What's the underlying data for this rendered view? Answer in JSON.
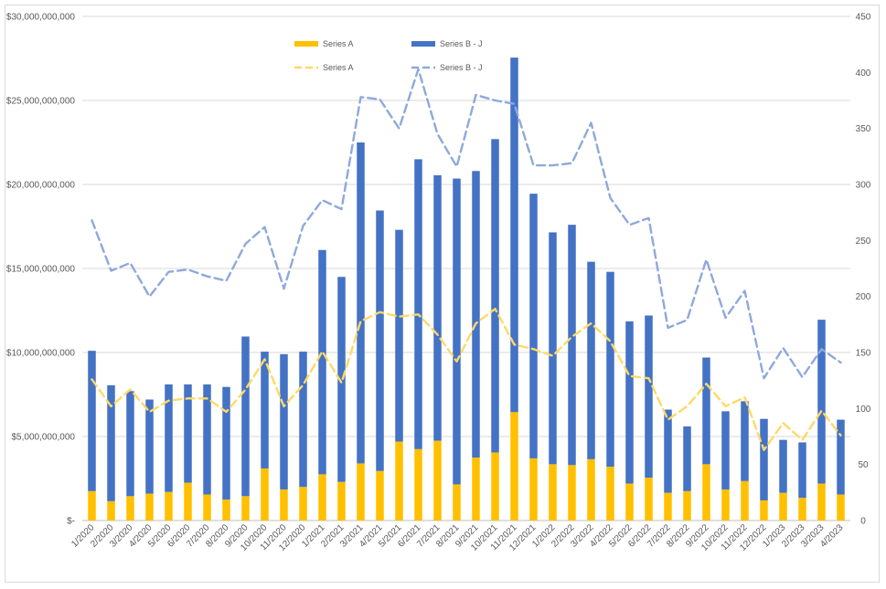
{
  "chart_data": {
    "type": "bar",
    "categories": [
      "1/2020",
      "2/2020",
      "3/2020",
      "4/2020",
      "5/2020",
      "6/2020",
      "7/2020",
      "8/2020",
      "9/2020",
      "10/2020",
      "11/2020",
      "12/2020",
      "1/2021",
      "2/2021",
      "3/2021",
      "4/2021",
      "5/2021",
      "6/2021",
      "7/2021",
      "8/2021",
      "9/2021",
      "10/2021",
      "11/2021",
      "12/2021",
      "1/2022",
      "2/2022",
      "3/2022",
      "4/2022",
      "5/2022",
      "6/2022",
      "7/2022",
      "8/2022",
      "9/2022",
      "10/2022",
      "11/2022",
      "12/2022",
      "1/2023",
      "2/2023",
      "3/2023",
      "4/2023"
    ],
    "stacked": true,
    "series": [
      {
        "name": "Series A",
        "kind": "bar",
        "axis": "left",
        "color": "#FFC000",
        "values": [
          1750000000,
          1150000000,
          1450000000,
          1600000000,
          1700000000,
          2250000000,
          1550000000,
          1250000000,
          1450000000,
          3100000000,
          1850000000,
          2000000000,
          2750000000,
          2300000000,
          3400000000,
          2950000000,
          4700000000,
          4250000000,
          4750000000,
          2150000000,
          3750000000,
          4050000000,
          6450000000,
          3700000000,
          3350000000,
          3300000000,
          3650000000,
          3200000000,
          2200000000,
          2550000000,
          1650000000,
          1750000000,
          3350000000,
          1850000000,
          2350000000,
          1200000000,
          1650000000,
          1350000000,
          2200000000,
          1550000000
        ]
      },
      {
        "name": "Series B - J",
        "kind": "bar",
        "axis": "left",
        "color": "#4472C4",
        "values": [
          8350000000,
          6900000000,
          6250000000,
          5600000000,
          6400000000,
          5850000000,
          6550000000,
          6700000000,
          9500000000,
          6950000000,
          8050000000,
          8050000000,
          13350000000,
          12200000000,
          19100000000,
          15500000000,
          12600000000,
          17250000000,
          15800000000,
          18200000000,
          17050000000,
          18650000000,
          21100000000,
          15750000000,
          13800000000,
          14300000000,
          11750000000,
          11600000000,
          9650000000,
          9650000000,
          4950000000,
          3850000000,
          6350000000,
          4650000000,
          4750000000,
          4850000000,
          3150000000,
          3300000000,
          9750000000,
          4450000000
        ]
      },
      {
        "name": "Series A",
        "kind": "line",
        "axis": "right",
        "color": "#FFD966",
        "values": [
          126,
          102,
          117,
          97,
          107,
          109,
          109,
          97,
          117,
          144,
          102,
          121,
          151,
          123,
          178,
          186,
          182,
          184,
          166,
          142,
          176,
          189,
          157,
          153,
          147,
          164,
          176,
          160,
          129,
          127,
          90,
          102,
          122,
          102,
          110,
          63,
          87,
          72,
          98,
          76
        ]
      },
      {
        "name": "Series B - J",
        "kind": "line",
        "axis": "right",
        "color": "#8EA9DB",
        "values": [
          268,
          223,
          230,
          200,
          222,
          224,
          218,
          214,
          247,
          262,
          207,
          263,
          286,
          278,
          378,
          376,
          350,
          403,
          345,
          316,
          380,
          375,
          372,
          317,
          317,
          319,
          355,
          288,
          264,
          270,
          172,
          179,
          233,
          181,
          205,
          127,
          154,
          128,
          153,
          141
        ]
      }
    ],
    "y_left": {
      "min": 0,
      "max": 30000000000,
      "step": 5000000000,
      "tick_labels": [
        "$-",
        "$5,000,000,000",
        "$10,000,000,000",
        "$15,000,000,000",
        "$20,000,000,000",
        "$25,000,000,000",
        "$30,000,000,000"
      ]
    },
    "y_right": {
      "min": 0,
      "max": 450,
      "step": 50,
      "tick_labels": [
        "0",
        "50",
        "100",
        "150",
        "200",
        "250",
        "300",
        "350",
        "400",
        "450"
      ]
    },
    "grid": true,
    "legend_position": "top-left-inside",
    "legend": [
      {
        "label": "Series A",
        "symbol": "bar",
        "color": "#FFC000"
      },
      {
        "label": "Series B - J",
        "symbol": "bar",
        "color": "#4472C4"
      },
      {
        "label": "Series A",
        "symbol": "dash",
        "color": "#FFD966"
      },
      {
        "label": "Series B - J",
        "symbol": "dash",
        "color": "#8EA9DB"
      }
    ],
    "title": "",
    "xlabel": "",
    "ylabel": ""
  }
}
